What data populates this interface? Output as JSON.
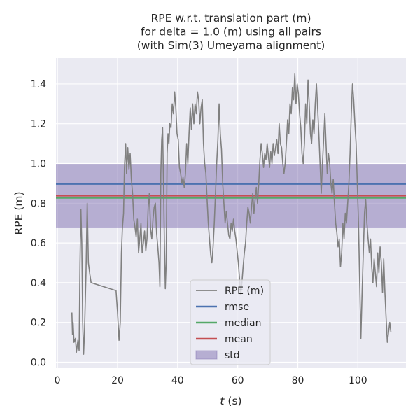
{
  "chart_data": {
    "type": "line",
    "title": [
      "RPE w.r.t. translation part (m)",
      "for delta = 1.0 (m) using all pairs",
      "(with Sim(3) Umeyama alignment)"
    ],
    "xlabel_italic": "t",
    "xlabel_rest": " (s)",
    "ylabel": "RPE (m)",
    "xlim": [
      -0.5,
      116
    ],
    "ylim": [
      -0.03,
      1.53
    ],
    "xticks": [
      0,
      20,
      40,
      60,
      80,
      100
    ],
    "yticks": [
      0.0,
      0.2,
      0.4,
      0.6,
      0.8,
      1.0,
      1.2,
      1.4
    ],
    "grid": true,
    "legend_position": "lower-center",
    "stats": {
      "rmse": 0.897,
      "median": 0.827,
      "mean": 0.838,
      "std": 0.16
    },
    "series": [
      {
        "name": "RPE (m)",
        "color": "#808080",
        "points": [
          [
            4.8,
            0.25
          ],
          [
            5.0,
            0.14
          ],
          [
            5.2,
            0.2
          ],
          [
            5.5,
            0.1
          ],
          [
            6.0,
            0.12
          ],
          [
            6.3,
            0.05
          ],
          [
            6.8,
            0.11
          ],
          [
            7.2,
            0.06
          ],
          [
            7.5,
            0.5
          ],
          [
            7.8,
            0.77
          ],
          [
            8.1,
            0.6
          ],
          [
            8.4,
            0.2
          ],
          [
            8.7,
            0.04
          ],
          [
            9.0,
            0.15
          ],
          [
            9.5,
            0.45
          ],
          [
            9.9,
            0.8
          ],
          [
            10.3,
            0.5
          ],
          [
            10.8,
            0.44
          ],
          [
            11.2,
            0.4
          ],
          [
            19.5,
            0.36
          ],
          [
            20.0,
            0.25
          ],
          [
            20.5,
            0.11
          ],
          [
            20.9,
            0.2
          ],
          [
            21.3,
            0.55
          ],
          [
            21.6,
            0.67
          ],
          [
            22.0,
            0.75
          ],
          [
            22.3,
            0.98
          ],
          [
            22.7,
            1.1
          ],
          [
            23.0,
            0.95
          ],
          [
            23.4,
            1.08
          ],
          [
            23.8,
            0.97
          ],
          [
            24.2,
            1.05
          ],
          [
            24.6,
            0.92
          ],
          [
            25.0,
            0.85
          ],
          [
            25.4,
            0.72
          ],
          [
            25.8,
            0.68
          ],
          [
            26.2,
            0.63
          ],
          [
            26.6,
            0.72
          ],
          [
            27.0,
            0.55
          ],
          [
            27.4,
            0.62
          ],
          [
            27.8,
            0.7
          ],
          [
            28.2,
            0.55
          ],
          [
            28.6,
            0.6
          ],
          [
            29.0,
            0.66
          ],
          [
            29.4,
            0.56
          ],
          [
            29.8,
            0.62
          ],
          [
            30.2,
            0.78
          ],
          [
            30.6,
            0.85
          ],
          [
            31.0,
            0.67
          ],
          [
            31.4,
            0.62
          ],
          [
            31.8,
            0.72
          ],
          [
            32.2,
            0.78
          ],
          [
            32.6,
            0.8
          ],
          [
            33.0,
            0.65
          ],
          [
            33.4,
            0.58
          ],
          [
            33.8,
            0.5
          ],
          [
            34.1,
            0.38
          ],
          [
            34.4,
            0.95
          ],
          [
            34.7,
            1.12
          ],
          [
            35.0,
            1.18
          ],
          [
            35.3,
            0.9
          ],
          [
            35.6,
            0.6
          ],
          [
            35.9,
            0.37
          ],
          [
            36.2,
            0.5
          ],
          [
            36.5,
            1.05
          ],
          [
            36.8,
            1.15
          ],
          [
            37.1,
            1.1
          ],
          [
            37.4,
            1.2
          ],
          [
            37.8,
            1.18
          ],
          [
            38.2,
            1.3
          ],
          [
            38.6,
            1.25
          ],
          [
            39.0,
            1.36
          ],
          [
            39.4,
            1.28
          ],
          [
            39.8,
            1.15
          ],
          [
            40.2,
            1.12
          ],
          [
            40.6,
            0.98
          ],
          [
            41.0,
            0.95
          ],
          [
            41.4,
            0.9
          ],
          [
            41.8,
            0.93
          ],
          [
            42.2,
            0.88
          ],
          [
            42.6,
            0.95
          ],
          [
            43.0,
            1.1
          ],
          [
            43.4,
            1.0
          ],
          [
            43.8,
            1.15
          ],
          [
            44.2,
            1.28
          ],
          [
            44.6,
            1.17
          ],
          [
            45.0,
            1.3
          ],
          [
            45.4,
            1.2
          ],
          [
            45.8,
            1.3
          ],
          [
            46.2,
            1.25
          ],
          [
            46.6,
            1.36
          ],
          [
            47.0,
            1.32
          ],
          [
            47.4,
            1.2
          ],
          [
            47.8,
            1.28
          ],
          [
            48.2,
            1.32
          ],
          [
            48.6,
            1.1
          ],
          [
            49.0,
            1.0
          ],
          [
            49.4,
            0.95
          ],
          [
            49.8,
            0.82
          ],
          [
            50.2,
            0.7
          ],
          [
            50.6,
            0.62
          ],
          [
            51.0,
            0.54
          ],
          [
            51.4,
            0.5
          ],
          [
            51.8,
            0.58
          ],
          [
            52.2,
            0.7
          ],
          [
            52.6,
            0.85
          ],
          [
            53.0,
            1.0
          ],
          [
            53.4,
            1.12
          ],
          [
            53.8,
            1.3
          ],
          [
            54.2,
            1.15
          ],
          [
            54.6,
            1.07
          ],
          [
            55.0,
            0.9
          ],
          [
            55.4,
            0.8
          ],
          [
            55.8,
            0.7
          ],
          [
            56.2,
            0.76
          ],
          [
            56.6,
            0.7
          ],
          [
            57.0,
            0.64
          ],
          [
            57.4,
            0.62
          ],
          [
            57.8,
            0.7
          ],
          [
            58.2,
            0.66
          ],
          [
            58.6,
            0.72
          ],
          [
            59.0,
            0.66
          ],
          [
            59.4,
            0.62
          ],
          [
            59.8,
            0.56
          ],
          [
            60.2,
            0.5
          ],
          [
            60.6,
            0.42
          ],
          [
            61.0,
            0.34
          ],
          [
            61.4,
            0.4
          ],
          [
            61.8,
            0.48
          ],
          [
            62.2,
            0.55
          ],
          [
            62.6,
            0.6
          ],
          [
            63.0,
            0.7
          ],
          [
            63.4,
            0.78
          ],
          [
            63.8,
            0.75
          ],
          [
            64.2,
            0.7
          ],
          [
            64.6,
            0.78
          ],
          [
            65.0,
            0.85
          ],
          [
            65.4,
            0.75
          ],
          [
            65.8,
            0.82
          ],
          [
            66.2,
            0.88
          ],
          [
            66.6,
            0.8
          ],
          [
            67.0,
            0.9
          ],
          [
            67.4,
            1.02
          ],
          [
            67.8,
            1.1
          ],
          [
            68.2,
            1.05
          ],
          [
            68.6,
            0.98
          ],
          [
            69.0,
            1.05
          ],
          [
            69.4,
            1.02
          ],
          [
            69.8,
            1.1
          ],
          [
            70.2,
            1.04
          ],
          [
            70.6,
            0.98
          ],
          [
            71.0,
            1.06
          ],
          [
            71.4,
            1.0
          ],
          [
            71.8,
            1.1
          ],
          [
            72.2,
            1.04
          ],
          [
            72.6,
            1.08
          ],
          [
            73.0,
            1.12
          ],
          [
            73.4,
            1.05
          ],
          [
            73.8,
            1.2
          ],
          [
            74.2,
            1.1
          ],
          [
            74.6,
            1.08
          ],
          [
            75.0,
            1.0
          ],
          [
            75.4,
            0.95
          ],
          [
            75.8,
            1.0
          ],
          [
            76.2,
            1.1
          ],
          [
            76.6,
            1.22
          ],
          [
            77.0,
            1.15
          ],
          [
            77.4,
            1.3
          ],
          [
            77.8,
            1.25
          ],
          [
            78.2,
            1.38
          ],
          [
            78.6,
            1.32
          ],
          [
            79.0,
            1.45
          ],
          [
            79.4,
            1.3
          ],
          [
            79.8,
            1.4
          ],
          [
            80.2,
            1.35
          ],
          [
            80.6,
            1.25
          ],
          [
            81.0,
            1.18
          ],
          [
            81.4,
            1.05
          ],
          [
            81.8,
            1.0
          ],
          [
            82.2,
            1.1
          ],
          [
            82.6,
            1.3
          ],
          [
            83.0,
            1.2
          ],
          [
            83.4,
            1.42
          ],
          [
            83.8,
            1.3
          ],
          [
            84.2,
            1.15
          ],
          [
            84.6,
            1.1
          ],
          [
            85.0,
            1.22
          ],
          [
            85.4,
            1.15
          ],
          [
            85.8,
            1.3
          ],
          [
            86.2,
            1.4
          ],
          [
            86.6,
            1.28
          ],
          [
            87.0,
            1.15
          ],
          [
            87.4,
            1.0
          ],
          [
            87.8,
            0.85
          ],
          [
            88.2,
            1.0
          ],
          [
            88.6,
            1.12
          ],
          [
            89.0,
            1.25
          ],
          [
            89.4,
            1.1
          ],
          [
            89.8,
            0.95
          ],
          [
            90.2,
            1.05
          ],
          [
            90.6,
            1.0
          ],
          [
            91.0,
            0.9
          ],
          [
            91.4,
            0.85
          ],
          [
            91.8,
            0.92
          ],
          [
            92.2,
            0.8
          ],
          [
            92.6,
            0.7
          ],
          [
            93.0,
            0.65
          ],
          [
            93.4,
            0.58
          ],
          [
            93.8,
            0.62
          ],
          [
            94.2,
            0.48
          ],
          [
            94.6,
            0.55
          ],
          [
            95.0,
            0.7
          ],
          [
            95.4,
            0.62
          ],
          [
            95.8,
            0.75
          ],
          [
            96.2,
            0.7
          ],
          [
            96.6,
            0.8
          ],
          [
            97.0,
            0.9
          ],
          [
            97.4,
            1.05
          ],
          [
            97.8,
            1.25
          ],
          [
            98.2,
            1.4
          ],
          [
            98.6,
            1.32
          ],
          [
            99.0,
            1.2
          ],
          [
            99.4,
            1.1
          ],
          [
            99.8,
            0.9
          ],
          [
            100.2,
            0.7
          ],
          [
            100.6,
            0.4
          ],
          [
            101.0,
            0.12
          ],
          [
            101.4,
            0.35
          ],
          [
            101.8,
            0.55
          ],
          [
            102.2,
            0.75
          ],
          [
            102.6,
            0.82
          ],
          [
            103.0,
            0.7
          ],
          [
            103.4,
            0.62
          ],
          [
            103.8,
            0.55
          ],
          [
            104.2,
            0.62
          ],
          [
            104.6,
            0.48
          ],
          [
            105.0,
            0.4
          ],
          [
            105.4,
            0.52
          ],
          [
            105.8,
            0.45
          ],
          [
            106.2,
            0.38
          ],
          [
            106.6,
            0.55
          ],
          [
            107.0,
            0.45
          ],
          [
            107.4,
            0.58
          ],
          [
            107.8,
            0.5
          ],
          [
            108.2,
            0.35
          ],
          [
            108.6,
            0.52
          ],
          [
            109.0,
            0.35
          ],
          [
            109.4,
            0.22
          ],
          [
            109.8,
            0.1
          ],
          [
            110.2,
            0.15
          ],
          [
            110.6,
            0.2
          ],
          [
            111.0,
            0.15
          ]
        ]
      },
      {
        "name": "rmse",
        "color": "#4c72b0"
      },
      {
        "name": "median",
        "color": "#55a868"
      },
      {
        "name": "mean",
        "color": "#c44e52"
      },
      {
        "name": "std",
        "color": "#8172b2"
      }
    ]
  }
}
